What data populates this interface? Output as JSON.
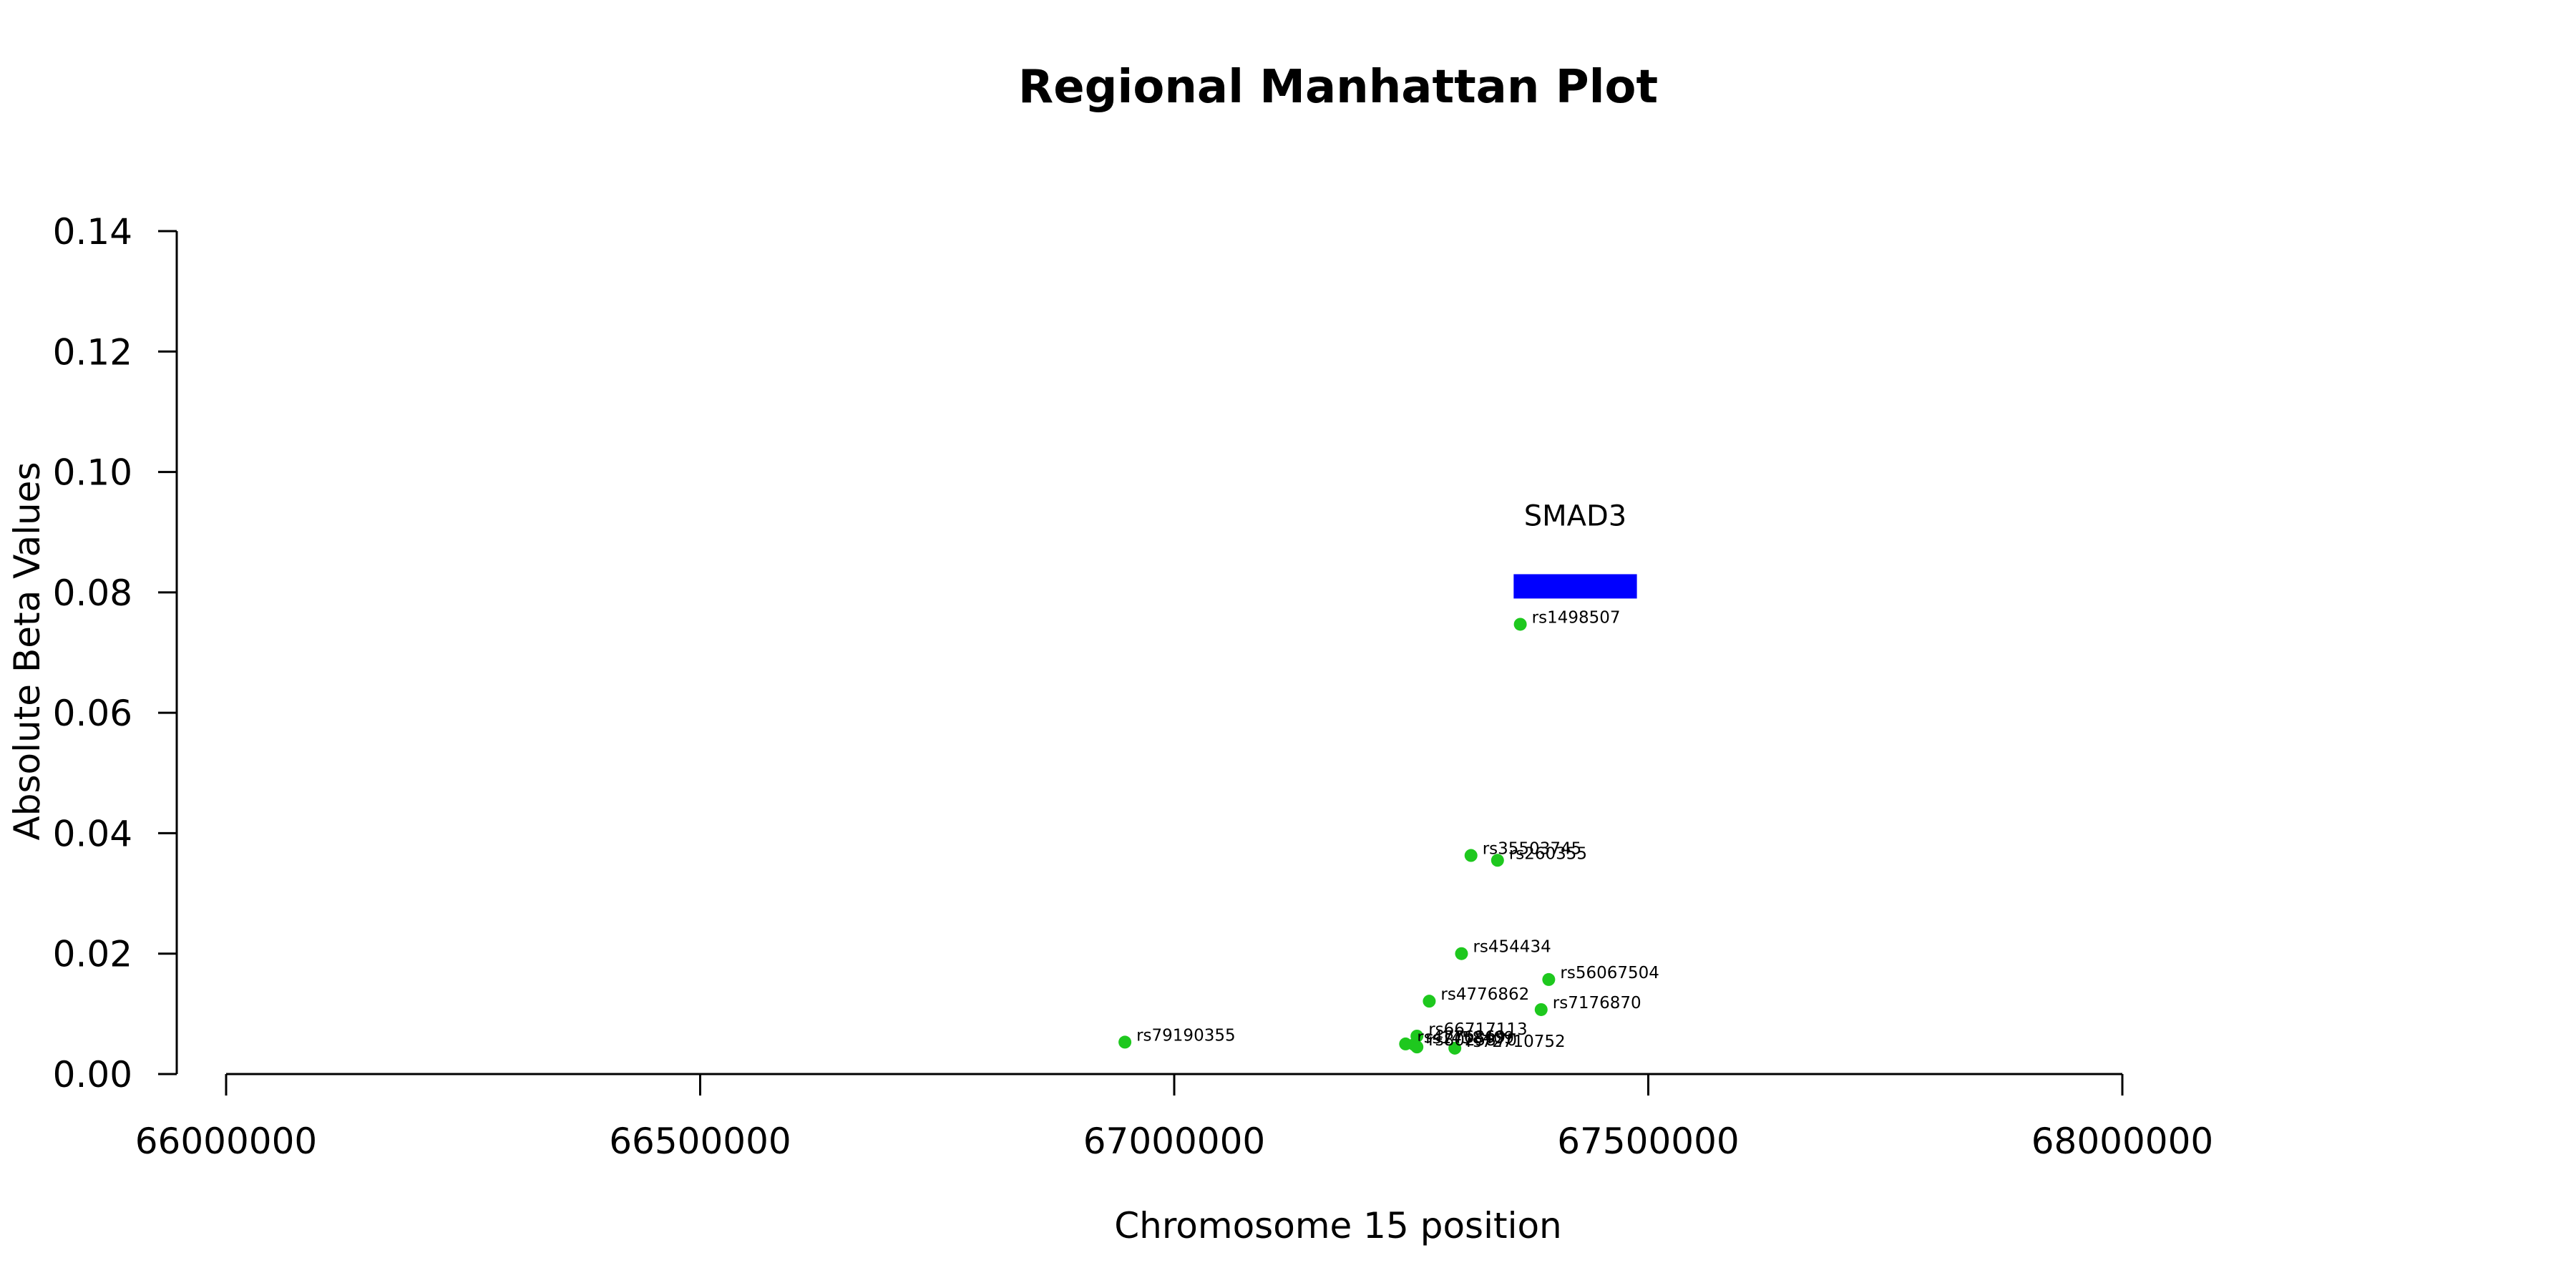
{
  "chart_data": {
    "type": "scatter",
    "title": "Regional Manhattan Plot",
    "xlabel": "Chromosome 15 position",
    "ylabel": "Absolute Beta Values",
    "xlim": [
      66000000,
      68000000
    ],
    "ylim": [
      0,
      0.14
    ],
    "x_ticks": [
      "66000000",
      "66500000",
      "67000000",
      "67500000",
      "68000000"
    ],
    "y_ticks": [
      "0.00",
      "0.02",
      "0.04",
      "0.06",
      "0.08",
      "0.10",
      "0.12",
      "0.14"
    ],
    "point_color": "#1ec81e",
    "gene": {
      "name": "SMAD3",
      "start": 67358000,
      "end": 67488000,
      "y": 0.081,
      "color": "#0000ff"
    },
    "points": [
      {
        "label": "rs79190355",
        "x": 66948000,
        "y": 0.0053
      },
      {
        "label": "rs1498507",
        "x": 67365000,
        "y": 0.0747
      },
      {
        "label": "rs35503745",
        "x": 67313000,
        "y": 0.0363
      },
      {
        "label": "rs260355",
        "x": 67341000,
        "y": 0.0355
      },
      {
        "label": "rs454434",
        "x": 67303000,
        "y": 0.02
      },
      {
        "label": "rs56067504",
        "x": 67395000,
        "y": 0.0157
      },
      {
        "label": "rs4776862",
        "x": 67269000,
        "y": 0.0121
      },
      {
        "label": "rs7176870",
        "x": 67387000,
        "y": 0.0107
      },
      {
        "label": "rs66717113",
        "x": 67256000,
        "y": 0.0063
      },
      {
        "label": "rs1458409",
        "x": 67253000,
        "y": 0.0049
      },
      {
        "label": "rs4776869",
        "x": 67244000,
        "y": 0.005
      },
      {
        "label": "rs72710752",
        "x": 67296000,
        "y": 0.0043
      },
      {
        "label": "rs8025870",
        "x": 67256000,
        "y": 0.0045
      }
    ]
  }
}
